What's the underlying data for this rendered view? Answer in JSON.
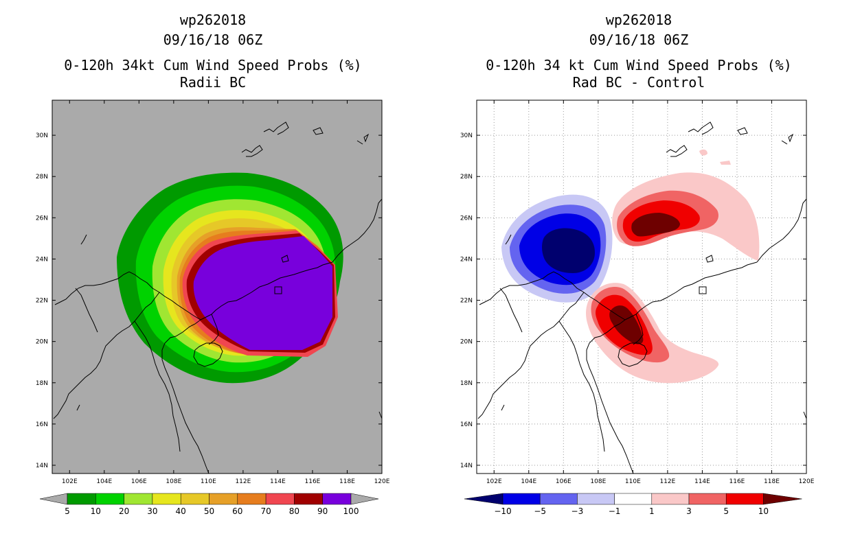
{
  "panels": [
    {
      "title_line1": "wp262018",
      "title_line2": "09/16/18 06Z",
      "title_line3": "0-120h 34kt Cum Wind Speed Probs (%)",
      "title_line4": "Radii BC"
    },
    {
      "title_line1": "wp262018",
      "title_line2": "09/16/18 06Z",
      "title_line3": "0-120h 34 kt Cum Wind Speed Probs (%)",
      "title_line4": "Rad BC - Control"
    }
  ],
  "chart_data": [
    {
      "type": "heatmap",
      "title": "0-120h 34kt Cum Wind Speed Probs (%)",
      "subtitle": "Radii BC",
      "storm": "wp262018",
      "time": "09/16/18 06Z",
      "units": "%",
      "x_ticks": [
        "102E",
        "104E",
        "106E",
        "108E",
        "110E",
        "112E",
        "114E",
        "116E",
        "118E",
        "120E"
      ],
      "y_ticks": [
        "14N",
        "16N",
        "18N",
        "20N",
        "22N",
        "24N",
        "26N",
        "28N",
        "30N"
      ],
      "xlim": [
        101,
        120
      ],
      "ylim": [
        13.6,
        31.7
      ],
      "colorbar": {
        "levels": [
          5,
          10,
          20,
          30,
          40,
          50,
          60,
          70,
          80,
          90,
          100
        ],
        "labels": [
          "5",
          "10",
          "20",
          "30",
          "40",
          "50",
          "60",
          "70",
          "80",
          "90",
          "100"
        ],
        "colors": [
          "#009a00",
          "#00d200",
          "#a0e632",
          "#e6e61e",
          "#e6c828",
          "#e6a028",
          "#e67d1e",
          "#f04650",
          "#a00000",
          "#7800dc"
        ],
        "extend_color": "#aaaaaa"
      },
      "background": "#aaaaaa"
    },
    {
      "type": "heatmap",
      "title": "0-120h 34 kt Cum Wind Speed Probs (%)",
      "subtitle": "Rad BC - Control",
      "storm": "wp262018",
      "time": "09/16/18 06Z",
      "units": "%",
      "x_ticks": [
        "102E",
        "104E",
        "106E",
        "108E",
        "110E",
        "112E",
        "114E",
        "116E",
        "118E",
        "120E"
      ],
      "y_ticks": [
        "14N",
        "16N",
        "18N",
        "20N",
        "22N",
        "24N",
        "26N",
        "28N",
        "30N"
      ],
      "xlim": [
        101,
        120
      ],
      "ylim": [
        13.6,
        31.7
      ],
      "colorbar": {
        "levels": [
          -10,
          -5,
          -3,
          -1,
          1,
          3,
          5,
          10
        ],
        "labels": [
          "-10",
          "-5",
          "-3",
          "-1",
          "1",
          "3",
          "5",
          "10"
        ],
        "colors": [
          "#00006e",
          "#0000e6",
          "#6464f0",
          "#c8c8f5",
          "#ffffff",
          "#fac8c8",
          "#f06464",
          "#f00000",
          "#6e0000"
        ]
      },
      "background": "#ffffff"
    }
  ]
}
